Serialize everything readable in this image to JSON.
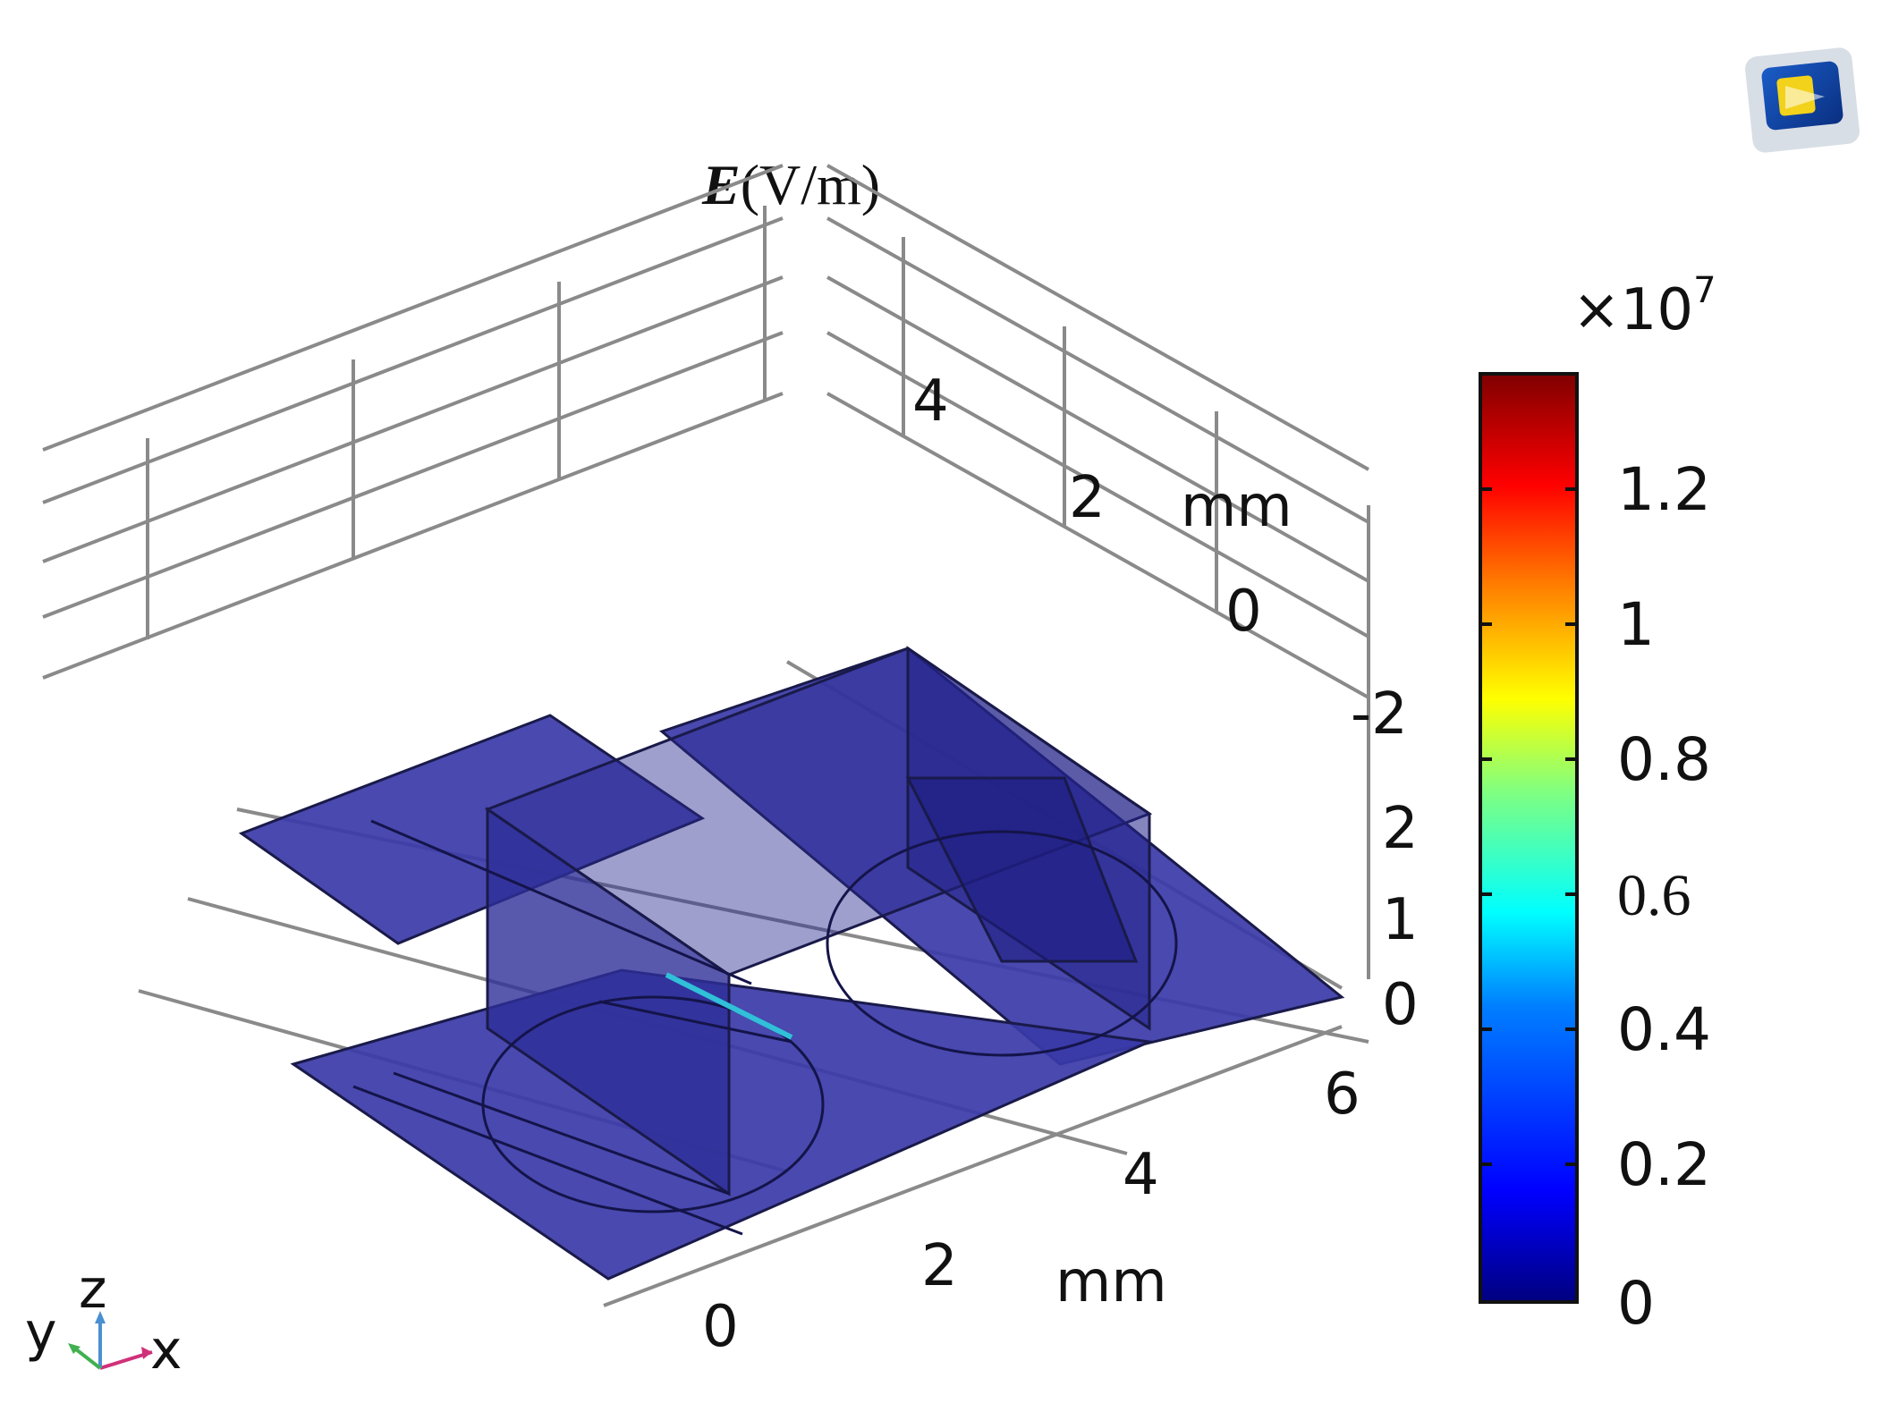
{
  "plot": {
    "title_symbol": "E",
    "title_unit": "(V/m)",
    "x_axis": {
      "unit": "mm",
      "ticks": [
        "0",
        "2",
        "4",
        "6"
      ]
    },
    "y_axis": {
      "unit": "mm",
      "ticks": [
        "4",
        "2",
        "0",
        "-2"
      ]
    },
    "z_axis": {
      "ticks": [
        "2",
        "1",
        "0"
      ]
    },
    "triad": {
      "x": "x",
      "y": "y",
      "z": "z"
    },
    "geometry_color": "#3a3aa8"
  },
  "colorbar": {
    "multiplier": "×10",
    "exponent": "7",
    "ticks": [
      "1.2",
      "1",
      "0.8",
      "0.6",
      "0.4",
      "0.2",
      "0"
    ],
    "colors": [
      "#00007f",
      "#0000ff",
      "#0080ff",
      "#00ffff",
      "#80ff80",
      "#ffff00",
      "#ff8000",
      "#ff0000",
      "#7f0000"
    ]
  },
  "toolbar": {
    "icon": "comsol-logo-icon"
  }
}
